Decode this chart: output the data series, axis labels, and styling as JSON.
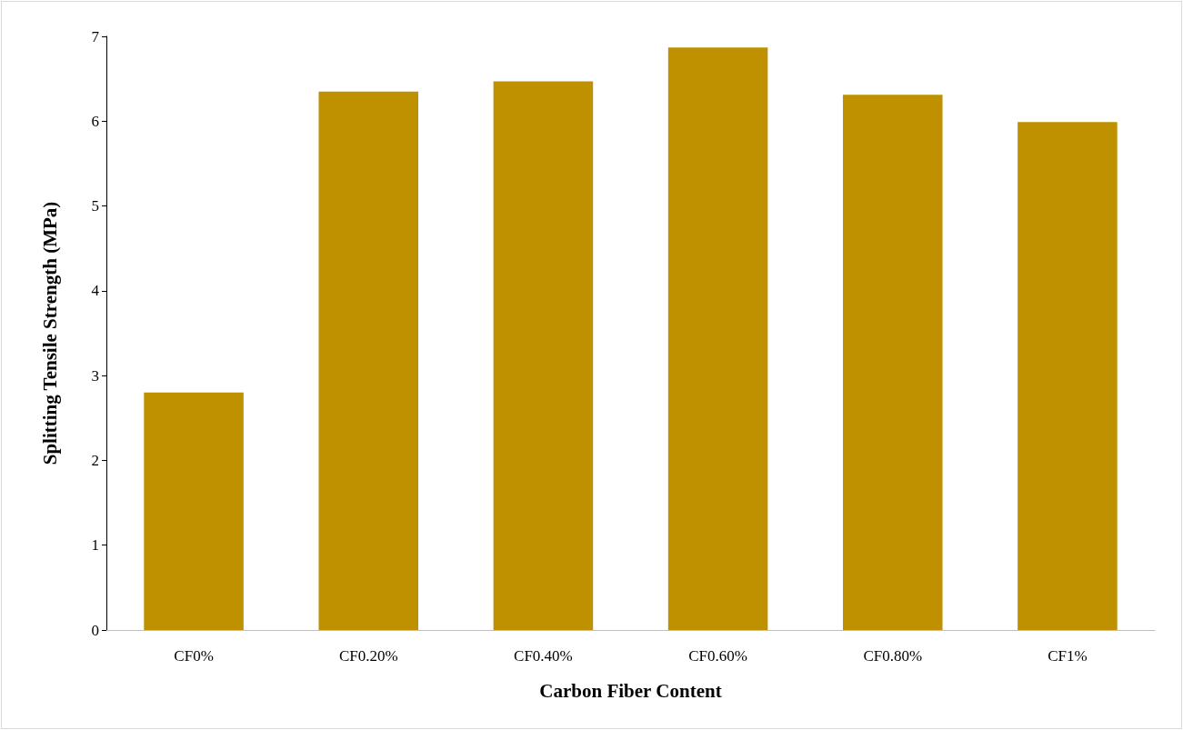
{
  "chart_data": {
    "type": "bar",
    "xlabel": "Carbon Fiber Content",
    "ylabel": "Splitting Tensile Strength (MPa)",
    "categories": [
      "CF0%",
      "CF0.20%",
      "CF0.40%",
      "CF0.60%",
      "CF0.80%",
      "CF1%"
    ],
    "values": [
      2.8,
      6.35,
      6.47,
      6.87,
      6.31,
      5.99
    ],
    "color": "#bf9000",
    "ylim": [
      0,
      7
    ],
    "yticks": [
      0,
      1,
      2,
      3,
      4,
      5,
      6,
      7
    ],
    "grid": false
  }
}
